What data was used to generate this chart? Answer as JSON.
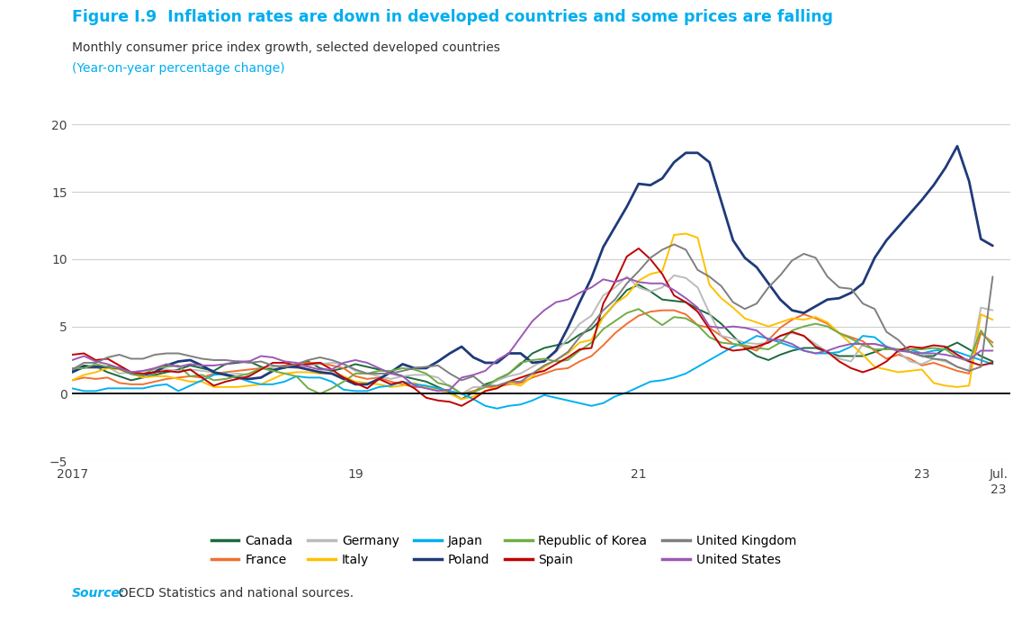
{
  "title": "Figure I.9  Inflation rates are down in developed countries and some prices are falling",
  "subtitle": "Monthly consumer price index growth, selected developed countries",
  "subtitle2": "(Year-on-year percentage change)",
  "source_italic": "Source:",
  "source_rest": "  OECD Statistics and national sources.",
  "title_color": "#00AEEF",
  "subtitle_color": "#333333",
  "source_color": "#00AEEF",
  "ylim": [
    -5,
    20
  ],
  "yticks": [
    -5,
    0,
    5,
    10,
    15,
    20
  ],
  "background_color": "#ffffff",
  "series_order": [
    "Canada",
    "France",
    "Germany",
    "Italy",
    "Japan",
    "Poland",
    "Republic of Korea",
    "Spain",
    "United Kingdom",
    "United States"
  ],
  "series": {
    "Canada": {
      "color": "#1a6b3c",
      "linewidth": 1.4
    },
    "France": {
      "color": "#f07030",
      "linewidth": 1.4
    },
    "Germany": {
      "color": "#bbbbbb",
      "linewidth": 1.4
    },
    "Italy": {
      "color": "#ffc000",
      "linewidth": 1.4
    },
    "Japan": {
      "color": "#00b0f0",
      "linewidth": 1.4
    },
    "Poland": {
      "color": "#1f3a7a",
      "linewidth": 2.0
    },
    "Republic of Korea": {
      "color": "#70ad47",
      "linewidth": 1.4
    },
    "Spain": {
      "color": "#c00000",
      "linewidth": 1.4
    },
    "United Kingdom": {
      "color": "#7f7f7f",
      "linewidth": 1.4
    },
    "United States": {
      "color": "#9b59b6",
      "linewidth": 1.4
    }
  },
  "data": {
    "Canada": [
      1.7,
      2.1,
      2.0,
      1.6,
      1.3,
      1.0,
      1.2,
      1.4,
      1.6,
      1.8,
      2.1,
      1.9,
      1.7,
      2.2,
      2.3,
      2.4,
      2.0,
      1.8,
      1.9,
      2.2,
      2.4,
      1.9,
      1.7,
      1.9,
      2.2,
      2.0,
      1.8,
      1.6,
      1.3,
      1.1,
      0.9,
      0.5,
      0.1,
      -0.4,
      0.1,
      0.7,
      1.0,
      1.5,
      2.2,
      3.0,
      3.4,
      3.6,
      3.8,
      4.4,
      4.8,
      5.7,
      6.7,
      7.7,
      8.1,
      7.6,
      7.0,
      6.9,
      6.8,
      6.3,
      5.9,
      5.2,
      4.3,
      3.4,
      2.8,
      2.5,
      2.9,
      3.2,
      3.4,
      3.4,
      3.1,
      2.8,
      2.8,
      2.8,
      3.1,
      3.4,
      3.3,
      3.1,
      2.8,
      2.8,
      3.4,
      3.8,
      3.3,
      2.8,
      2.4
    ],
    "France": [
      1.0,
      1.2,
      1.1,
      1.2,
      0.8,
      0.7,
      0.7,
      0.9,
      1.1,
      1.2,
      1.3,
      1.2,
      1.5,
      1.6,
      1.7,
      1.8,
      1.9,
      2.0,
      2.1,
      2.2,
      2.3,
      2.3,
      2.1,
      1.9,
      1.3,
      1.1,
      1.2,
      0.9,
      0.7,
      0.5,
      0.5,
      0.4,
      0.2,
      0.0,
      0.2,
      0.5,
      0.5,
      0.7,
      0.8,
      1.2,
      1.5,
      1.8,
      1.9,
      2.4,
      2.8,
      3.6,
      4.5,
      5.2,
      5.8,
      6.1,
      6.2,
      6.2,
      5.9,
      5.1,
      4.9,
      4.3,
      3.7,
      3.5,
      3.2,
      4.0,
      4.9,
      5.5,
      5.9,
      5.6,
      5.2,
      4.5,
      4.2,
      3.9,
      3.2,
      2.6,
      2.9,
      2.6,
      2.1,
      2.3,
      2.0,
      1.7,
      1.5,
      4.5,
      3.8
    ],
    "Germany": [
      1.8,
      1.9,
      1.9,
      2.0,
      1.5,
      1.6,
      1.7,
      1.8,
      1.8,
      1.7,
      1.8,
      1.7,
      1.6,
      1.4,
      1.5,
      1.4,
      1.9,
      2.0,
      2.0,
      1.9,
      2.1,
      2.2,
      2.3,
      2.2,
      1.7,
      1.5,
      1.3,
      1.1,
      1.3,
      1.4,
      1.4,
      1.2,
      0.5,
      0.0,
      0.5,
      0.5,
      1.0,
      1.3,
      1.5,
      2.0,
      2.5,
      3.1,
      4.1,
      5.2,
      5.8,
      7.3,
      7.9,
      8.7,
      7.9,
      7.6,
      7.9,
      8.8,
      8.6,
      7.9,
      6.0,
      4.3,
      4.1,
      3.8,
      3.7,
      3.8,
      4.3,
      4.5,
      4.3,
      3.7,
      3.1,
      2.6,
      2.4,
      3.7,
      3.7,
      3.5,
      3.1,
      2.4,
      2.2,
      2.6,
      2.4,
      2.0,
      1.7,
      6.4,
      6.2
    ],
    "Italy": [
      1.0,
      1.4,
      1.6,
      1.9,
      1.8,
      1.5,
      1.2,
      1.3,
      1.3,
      1.1,
      0.9,
      0.9,
      0.5,
      0.5,
      0.5,
      0.6,
      0.7,
      1.1,
      1.5,
      1.6,
      1.6,
      1.5,
      1.5,
      1.3,
      0.9,
      0.8,
      0.7,
      0.5,
      0.6,
      0.8,
      0.5,
      0.3,
      0.0,
      -0.4,
      -0.2,
      0.2,
      0.5,
      0.8,
      0.6,
      1.3,
      2.0,
      2.5,
      3.0,
      3.8,
      4.0,
      5.7,
      6.7,
      7.3,
      8.4,
      8.9,
      9.1,
      11.8,
      11.9,
      11.6,
      8.1,
      7.1,
      6.4,
      5.6,
      5.3,
      5.0,
      5.3,
      5.6,
      5.5,
      5.7,
      5.3,
      4.5,
      3.7,
      2.9,
      2.0,
      1.8,
      1.6,
      1.7,
      1.8,
      0.8,
      0.6,
      0.5,
      0.6,
      5.9,
      5.5
    ],
    "Japan": [
      0.4,
      0.2,
      0.2,
      0.4,
      0.4,
      0.4,
      0.4,
      0.6,
      0.7,
      0.2,
      0.6,
      1.0,
      1.4,
      1.5,
      1.2,
      0.9,
      0.7,
      0.7,
      0.9,
      1.3,
      1.2,
      1.2,
      0.9,
      0.3,
      0.2,
      0.2,
      0.5,
      0.6,
      0.9,
      0.7,
      0.6,
      0.4,
      0.2,
      0.0,
      -0.4,
      -0.9,
      -1.1,
      -0.9,
      -0.8,
      -0.5,
      -0.1,
      -0.3,
      -0.5,
      -0.7,
      -0.9,
      -0.7,
      -0.2,
      0.1,
      0.5,
      0.9,
      1.0,
      1.2,
      1.5,
      2.0,
      2.5,
      3.0,
      3.5,
      3.8,
      4.3,
      4.1,
      3.8,
      3.5,
      3.2,
      3.0,
      3.0,
      3.1,
      3.5,
      4.3,
      4.2,
      3.5,
      3.2,
      3.3,
      3.0,
      3.2,
      3.3,
      3.1,
      2.8,
      2.5,
      2.2
    ],
    "Poland": [
      1.6,
      2.0,
      2.0,
      2.0,
      1.9,
      1.5,
      1.4,
      1.6,
      2.1,
      2.4,
      2.5,
      2.1,
      1.6,
      1.4,
      1.2,
      1.1,
      1.2,
      1.7,
      2.0,
      2.0,
      1.8,
      1.6,
      1.5,
      1.1,
      0.7,
      0.7,
      1.1,
      1.6,
      2.2,
      1.9,
      1.9,
      2.4,
      3.0,
      3.5,
      2.7,
      2.3,
      2.3,
      3.0,
      3.0,
      2.3,
      2.4,
      3.2,
      4.9,
      6.8,
      8.6,
      10.9,
      12.4,
      13.9,
      15.6,
      15.5,
      16.0,
      17.2,
      17.9,
      17.9,
      17.2,
      14.3,
      11.4,
      10.1,
      9.4,
      8.2,
      7.0,
      6.2,
      6.0,
      6.5,
      7.0,
      7.1,
      7.5,
      8.2,
      10.1,
      11.4,
      12.4,
      13.4,
      14.4,
      15.5,
      16.8,
      18.4,
      15.8,
      11.5,
      11.0
    ],
    "Republic of Korea": [
      1.9,
      1.9,
      2.2,
      2.0,
      1.9,
      1.5,
      1.4,
      1.9,
      2.0,
      2.1,
      1.3,
      1.4,
      1.0,
      1.1,
      1.3,
      1.5,
      1.9,
      1.7,
      1.5,
      1.3,
      0.4,
      0.0,
      0.4,
      0.9,
      1.5,
      1.5,
      1.7,
      1.7,
      1.9,
      1.8,
      1.5,
      0.8,
      0.6,
      0.0,
      0.1,
      0.5,
      1.1,
      1.5,
      2.3,
      2.5,
      2.6,
      2.4,
      2.5,
      3.2,
      3.8,
      4.8,
      5.4,
      6.0,
      6.3,
      5.7,
      5.1,
      5.7,
      5.6,
      5.1,
      4.2,
      3.8,
      3.7,
      3.6,
      3.4,
      3.3,
      3.8,
      4.7,
      5.0,
      5.2,
      5.0,
      4.5,
      4.1,
      3.6,
      3.3,
      3.3,
      3.3,
      3.3,
      3.3,
      3.4,
      3.3,
      2.7,
      2.4,
      4.7,
      3.5
    ],
    "Spain": [
      2.9,
      3.0,
      2.5,
      2.6,
      2.1,
      1.6,
      1.5,
      1.6,
      1.7,
      1.6,
      1.8,
      1.2,
      0.6,
      0.9,
      1.1,
      1.3,
      1.8,
      2.3,
      2.3,
      2.1,
      2.2,
      2.3,
      1.8,
      1.2,
      0.8,
      0.4,
      1.1,
      0.7,
      0.9,
      0.4,
      -0.3,
      -0.5,
      -0.6,
      -0.9,
      -0.4,
      0.2,
      0.4,
      0.9,
      1.2,
      1.5,
      1.7,
      2.2,
      2.7,
      3.3,
      3.4,
      6.7,
      8.3,
      10.2,
      10.8,
      10.0,
      8.9,
      7.3,
      6.8,
      6.1,
      4.8,
      3.5,
      3.2,
      3.3,
      3.5,
      3.8,
      4.3,
      4.6,
      4.3,
      3.5,
      3.1,
      2.4,
      1.9,
      1.6,
      1.9,
      2.4,
      3.2,
      3.5,
      3.4,
      3.6,
      3.5,
      2.9,
      2.4,
      2.1,
      2.3
    ],
    "United Kingdom": [
      1.8,
      2.3,
      2.3,
      2.7,
      2.9,
      2.6,
      2.6,
      2.9,
      3.0,
      3.0,
      2.8,
      2.6,
      2.5,
      2.5,
      2.4,
      2.3,
      2.4,
      2.1,
      2.0,
      2.2,
      2.5,
      2.7,
      2.5,
      2.2,
      1.8,
      1.5,
      1.5,
      1.5,
      1.7,
      1.9,
      2.0,
      2.1,
      1.5,
      1.0,
      1.3,
      0.6,
      0.6,
      0.9,
      0.9,
      1.5,
      2.1,
      2.5,
      3.1,
      4.2,
      5.1,
      6.2,
      7.0,
      8.2,
      9.1,
      10.1,
      10.7,
      11.1,
      10.7,
      9.2,
      8.7,
      8.0,
      6.8,
      6.3,
      6.7,
      7.9,
      8.8,
      9.9,
      10.4,
      10.1,
      8.7,
      7.9,
      7.8,
      6.7,
      6.3,
      4.6,
      4.0,
      3.1,
      2.8,
      2.6,
      2.5,
      2.0,
      1.7,
      2.0,
      8.7
    ],
    "United States": [
      2.5,
      2.8,
      2.4,
      2.2,
      1.9,
      1.6,
      1.7,
      1.9,
      2.2,
      2.0,
      2.2,
      2.1,
      2.1,
      2.2,
      2.4,
      2.4,
      2.8,
      2.7,
      2.4,
      2.3,
      2.0,
      1.8,
      1.8,
      2.3,
      2.5,
      2.3,
      1.9,
      1.5,
      1.3,
      0.6,
      0.4,
      0.2,
      0.3,
      1.2,
      1.4,
      1.7,
      2.5,
      3.0,
      4.2,
      5.4,
      6.2,
      6.8,
      7.0,
      7.5,
      7.9,
      8.5,
      8.3,
      8.6,
      8.3,
      8.2,
      8.2,
      7.7,
      7.1,
      6.4,
      5.0,
      4.9,
      5.0,
      4.9,
      4.7,
      4.0,
      4.0,
      3.7,
      3.2,
      3.0,
      3.2,
      3.5,
      3.7,
      3.7,
      3.7,
      3.5,
      3.2,
      3.1,
      3.0,
      3.0,
      2.9,
      2.7,
      2.5,
      3.2,
      3.2
    ]
  }
}
